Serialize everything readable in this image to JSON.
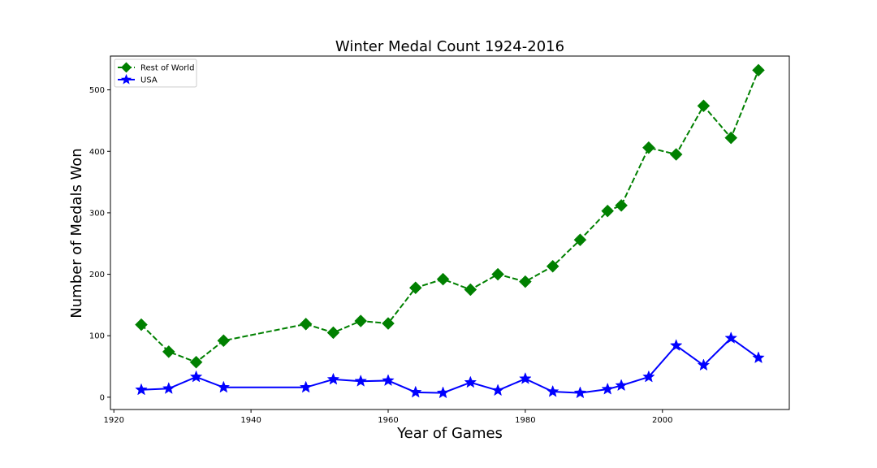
{
  "chart_data": {
    "type": "line",
    "title": "Winter Medal Count 1924-2016",
    "xlabel": "Year of Games",
    "ylabel": "Number of Medals Won",
    "xlim": [
      1919.5,
      2018.5
    ],
    "ylim": [
      -20,
      555
    ],
    "xticks": [
      1920,
      1940,
      1960,
      1980,
      2000
    ],
    "yticks": [
      0,
      100,
      200,
      300,
      400,
      500
    ],
    "grid": false,
    "legend_position": "top-left",
    "series": [
      {
        "name": "Rest of World",
        "color": "#008000",
        "line_style": "dashed",
        "marker": "diamond",
        "x": [
          1924,
          1928,
          1932,
          1936,
          1948,
          1952,
          1956,
          1960,
          1964,
          1968,
          1972,
          1976,
          1980,
          1984,
          1988,
          1992,
          1994,
          1998,
          2002,
          2006,
          2010,
          2014
        ],
        "values": [
          118,
          74,
          57,
          92,
          119,
          105,
          124,
          120,
          178,
          192,
          175,
          200,
          188,
          213,
          256,
          303,
          312,
          406,
          395,
          474,
          422,
          532
        ]
      },
      {
        "name": "USA",
        "color": "#0000ff",
        "line_style": "solid",
        "marker": "star",
        "x": [
          1924,
          1928,
          1932,
          1936,
          1948,
          1952,
          1956,
          1960,
          1964,
          1968,
          1972,
          1976,
          1980,
          1984,
          1988,
          1992,
          1994,
          1998,
          2002,
          2006,
          2010,
          2014
        ],
        "values": [
          12,
          14,
          33,
          16,
          16,
          29,
          26,
          27,
          8,
          7,
          24,
          11,
          30,
          9,
          7,
          13,
          19,
          33,
          84,
          52,
          96,
          64
        ]
      }
    ]
  }
}
